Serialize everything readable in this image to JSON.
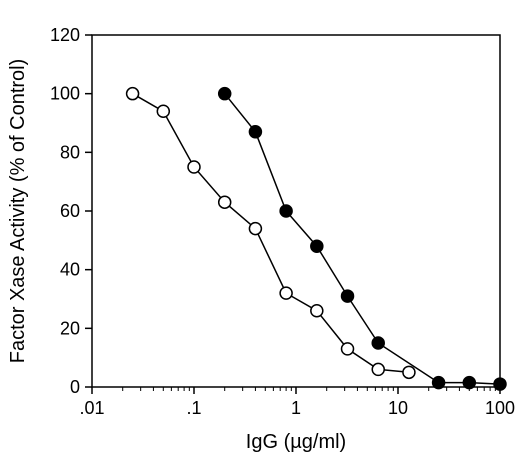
{
  "chart_data": {
    "type": "scatter",
    "title": "",
    "xlabel": "IgG (µg/ml)",
    "ylabel": "Factor Xase Activity (% of Control)",
    "xscale": "log",
    "xlim": [
      0.01,
      100
    ],
    "ylim": [
      0,
      120
    ],
    "xticks": [
      {
        "value": 0.01,
        "label": ".01"
      },
      {
        "value": 0.1,
        "label": ".1"
      },
      {
        "value": 1,
        "label": "1"
      },
      {
        "value": 10,
        "label": "10"
      },
      {
        "value": 100,
        "label": "100"
      }
    ],
    "yticks": [
      {
        "value": 0,
        "label": "0"
      },
      {
        "value": 20,
        "label": "20"
      },
      {
        "value": 40,
        "label": "40"
      },
      {
        "value": 60,
        "label": "60"
      },
      {
        "value": 80,
        "label": "80"
      },
      {
        "value": 100,
        "label": "100"
      },
      {
        "value": 120,
        "label": "120"
      }
    ],
    "grid": false,
    "legend": false,
    "series": [
      {
        "marker": "open-circle",
        "color": "#000000",
        "points": [
          {
            "x": 0.025,
            "y": 100
          },
          {
            "x": 0.05,
            "y": 94
          },
          {
            "x": 0.1,
            "y": 75
          },
          {
            "x": 0.2,
            "y": 63
          },
          {
            "x": 0.4,
            "y": 54
          },
          {
            "x": 0.8,
            "y": 32
          },
          {
            "x": 1.6,
            "y": 26
          },
          {
            "x": 3.2,
            "y": 13
          },
          {
            "x": 6.4,
            "y": 6
          },
          {
            "x": 12.8,
            "y": 5
          }
        ]
      },
      {
        "marker": "filled-circle",
        "color": "#000000",
        "points": [
          {
            "x": 0.2,
            "y": 100
          },
          {
            "x": 0.4,
            "y": 87
          },
          {
            "x": 0.8,
            "y": 60
          },
          {
            "x": 1.6,
            "y": 48
          },
          {
            "x": 3.2,
            "y": 31
          },
          {
            "x": 6.4,
            "y": 15
          },
          {
            "x": 25,
            "y": 1.5
          },
          {
            "x": 50,
            "y": 1.5
          },
          {
            "x": 100,
            "y": 1
          }
        ]
      }
    ]
  }
}
